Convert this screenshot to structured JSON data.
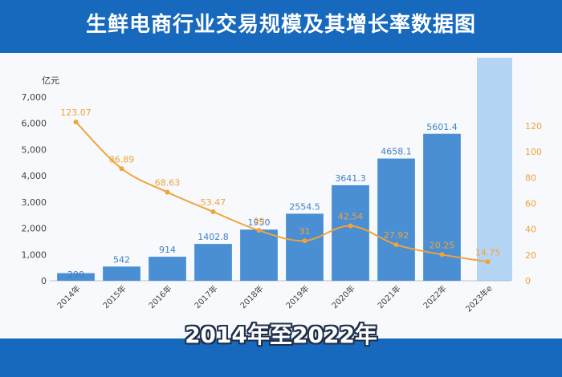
{
  "header": {
    "title": "生鲜电商行业交易规模及其增长率数据图"
  },
  "caption": "2014年至2022年",
  "colors": {
    "header_bg": "#1769bd",
    "bar": "#4a8fd4",
    "bar_highlight": "#7fb8ec",
    "line": "#f0a33a",
    "bar_label": "#3f7fc4",
    "line_label": "#f0a33a"
  },
  "chart_data": {
    "type": "bar",
    "title": "生鲜电商行业交易规模及其增长率数据图",
    "y_unit": "亿元",
    "categories": [
      "2014年",
      "2015年",
      "2016年",
      "2017年",
      "2018年",
      "2019年",
      "2020年",
      "2021年",
      "2022年",
      "2023年e"
    ],
    "series": [
      {
        "type": "bar",
        "axis": "left",
        "values": [
          290,
          542,
          914,
          1402.8,
          1950,
          2554.5,
          3641.3,
          4658.1,
          5601.4,
          null
        ],
        "labels": [
          "290",
          "542",
          "914",
          "1402.8",
          "1950",
          "2554.5",
          "3641.3",
          "4658.1",
          "5601.4",
          ""
        ]
      },
      {
        "type": "line",
        "axis": "right",
        "values": [
          123.07,
          86.89,
          68.63,
          53.47,
          39,
          31,
          42.54,
          27.92,
          20.25,
          14.75
        ],
        "labels": [
          "123.07",
          "86.89",
          "68.63",
          "53.47",
          "39",
          "31",
          "42.54",
          "27.92",
          "20.25",
          "14.75"
        ]
      }
    ],
    "ylim_left": [
      0,
      7000
    ],
    "yticks_left": [
      "0",
      "1,000",
      "2,000",
      "3,000",
      "4,000",
      "5,000",
      "6,000",
      "7,000"
    ],
    "ylim_right": [
      0,
      140
    ],
    "yticks_right": [
      "0",
      "20",
      "40",
      "60",
      "80",
      "100",
      "120"
    ],
    "grid": false,
    "legend": "none"
  }
}
